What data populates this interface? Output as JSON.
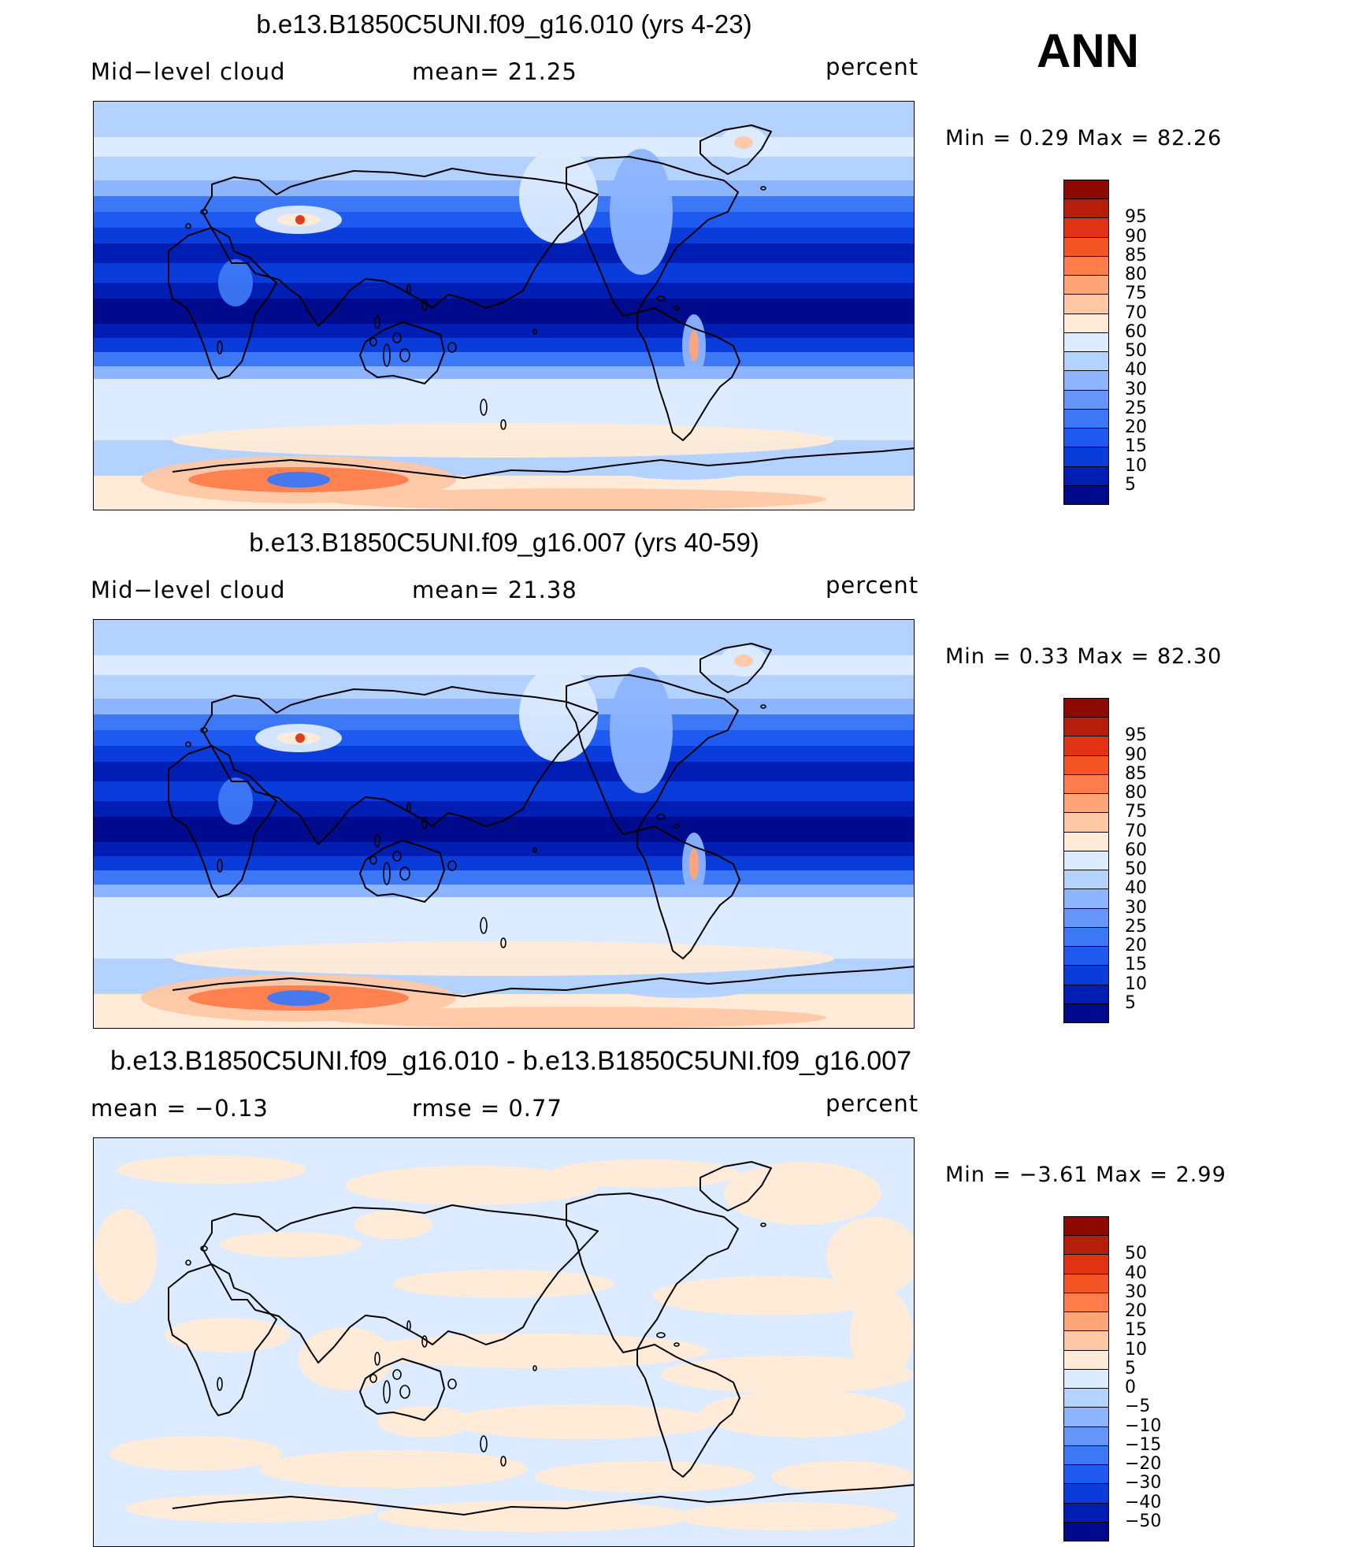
{
  "season": "ANN",
  "panels": [
    {
      "title": "b.e13.B1850C5UNI.f09_g16.010 (yrs 4-23)",
      "left_label": "Mid−level cloud",
      "center_label": "mean=   21.25",
      "right_label": "percent",
      "minmax": "Min =     0.29  Max =   82.26",
      "kind": "field",
      "colorbar": {
        "colors": [
          "#000a8c",
          "#001eb4",
          "#0a3cdc",
          "#1e5af0",
          "#3c78f5",
          "#6496fa",
          "#8cb4ff",
          "#b4d2ff",
          "#dcebff",
          "#ffebd7",
          "#ffc8a5",
          "#ffa578",
          "#ff7d4b",
          "#f55523",
          "#e13214",
          "#b41e0a",
          "#8c0a00"
        ],
        "labels": [
          "5",
          "10",
          "15",
          "20",
          "25",
          "30",
          "40",
          "50",
          "60",
          "70",
          "75",
          "80",
          "85",
          "90",
          "95"
        ]
      }
    },
    {
      "title": "b.e13.B1850C5UNI.f09_g16.007 (yrs 40-59)",
      "left_label": "Mid−level cloud",
      "center_label": "mean=   21.38",
      "right_label": "percent",
      "minmax": "Min =     0.33  Max =   82.30",
      "kind": "field",
      "colorbar": {
        "colors": [
          "#000a8c",
          "#001eb4",
          "#0a3cdc",
          "#1e5af0",
          "#3c78f5",
          "#6496fa",
          "#8cb4ff",
          "#b4d2ff",
          "#dcebff",
          "#ffebd7",
          "#ffc8a5",
          "#ffa578",
          "#ff7d4b",
          "#f55523",
          "#e13214",
          "#b41e0a",
          "#8c0a00"
        ],
        "labels": [
          "5",
          "10",
          "15",
          "20",
          "25",
          "30",
          "40",
          "50",
          "60",
          "70",
          "75",
          "80",
          "85",
          "90",
          "95"
        ]
      }
    },
    {
      "title": "b.e13.B1850C5UNI.f09_g16.010 - b.e13.B1850C5UNI.f09_g16.007",
      "left_label": "mean  =   −0.13",
      "center_label": "rmse  =     0.77",
      "right_label": "percent",
      "minmax": "Min =   −3.61  Max =      2.99",
      "kind": "diff",
      "colorbar": {
        "colors": [
          "#000a8c",
          "#001eb4",
          "#0a3cdc",
          "#1e5af0",
          "#3c78f5",
          "#6496fa",
          "#8cb4ff",
          "#b4d2ff",
          "#dcebff",
          "#ffebd7",
          "#ffc8a5",
          "#ffa578",
          "#ff7d4b",
          "#f55523",
          "#e13214",
          "#b41e0a",
          "#8c0a00"
        ],
        "labels": [
          "−50",
          "−40",
          "−30",
          "−20",
          "−15",
          "−10",
          "−5",
          "0",
          "5",
          "10",
          "15",
          "20",
          "30",
          "40",
          "50"
        ]
      }
    }
  ]
}
